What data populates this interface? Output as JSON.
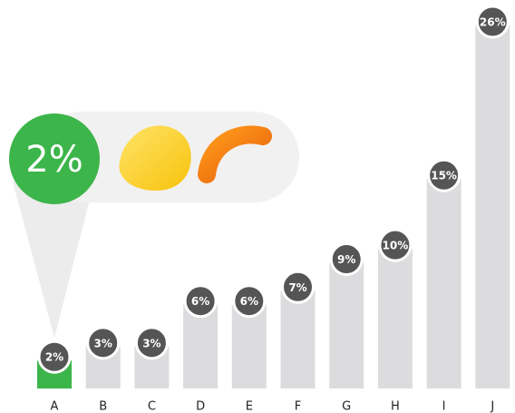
{
  "chart_data": {
    "type": "bar",
    "categories": [
      "A",
      "B",
      "C",
      "D",
      "E",
      "F",
      "G",
      "H",
      "I",
      "J"
    ],
    "values": [
      2,
      3,
      3,
      6,
      6,
      7,
      9,
      10,
      15,
      26
    ],
    "value_labels": [
      "2%",
      "3%",
      "3%",
      "6%",
      "6%",
      "7%",
      "9%",
      "10%",
      "15%",
      "26%"
    ],
    "colors": [
      "#3cb54a",
      "#dcdcde",
      "#dcdcde",
      "#dcdcde",
      "#dcdcde",
      "#dcdcde",
      "#dcdcde",
      "#dcdcde",
      "#dcdcde",
      "#dcdcde"
    ]
  }
}
